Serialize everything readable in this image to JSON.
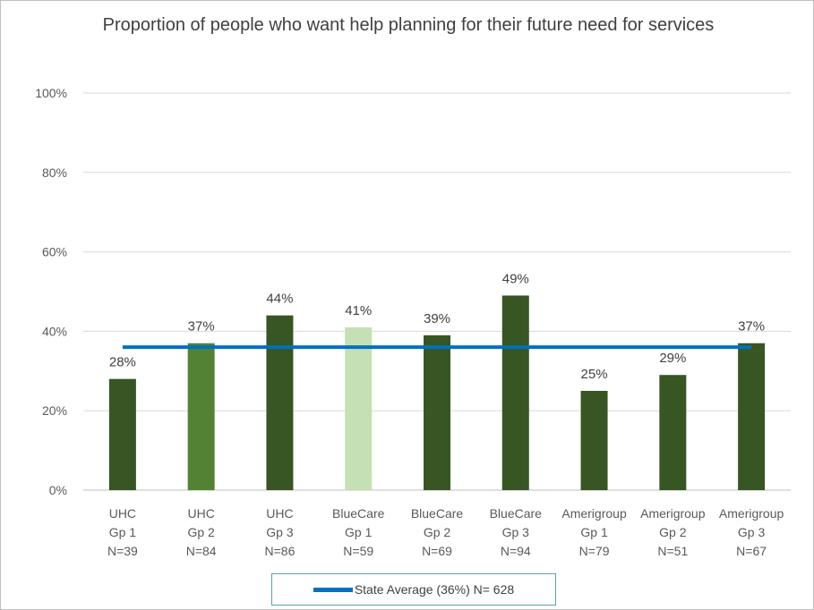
{
  "chart_data": {
    "type": "bar",
    "title": "Proportion of people who want help planning for their future need for services",
    "categories": [
      [
        "UHC",
        "Gp 1",
        "N=39"
      ],
      [
        "UHC",
        "Gp 2",
        "N=84"
      ],
      [
        "UHC",
        "Gp 3",
        "N=86"
      ],
      [
        "BlueCare",
        "Gp 1",
        "N=59"
      ],
      [
        "BlueCare",
        "Gp 2",
        "N=69"
      ],
      [
        "BlueCare",
        "Gp 3",
        "N=94"
      ],
      [
        "Amerigroup",
        "Gp 1",
        "N=79"
      ],
      [
        "Amerigroup",
        "Gp 2",
        "N=51"
      ],
      [
        "Amerigroup",
        "Gp 3",
        "N=67"
      ]
    ],
    "values": [
      28,
      37,
      44,
      41,
      39,
      49,
      25,
      29,
      37
    ],
    "value_labels": [
      "28%",
      "37%",
      "44%",
      "41%",
      "39%",
      "49%",
      "25%",
      "29%",
      "37%"
    ],
    "bar_colors": [
      "#375623",
      "#548235",
      "#375623",
      "#c5e0b4",
      "#375623",
      "#375623",
      "#375623",
      "#375623",
      "#375623"
    ],
    "ylim": [
      0,
      100
    ],
    "yticks": [
      0,
      20,
      40,
      60,
      80,
      100
    ],
    "ytick_labels": [
      "0%",
      "20%",
      "40%",
      "60%",
      "80%",
      "100%"
    ],
    "grid": true,
    "reference_line": {
      "name": "State Average (36%) N= 628",
      "value": 36,
      "color": "#0070c0"
    },
    "legend": {
      "position": "bottom"
    }
  }
}
